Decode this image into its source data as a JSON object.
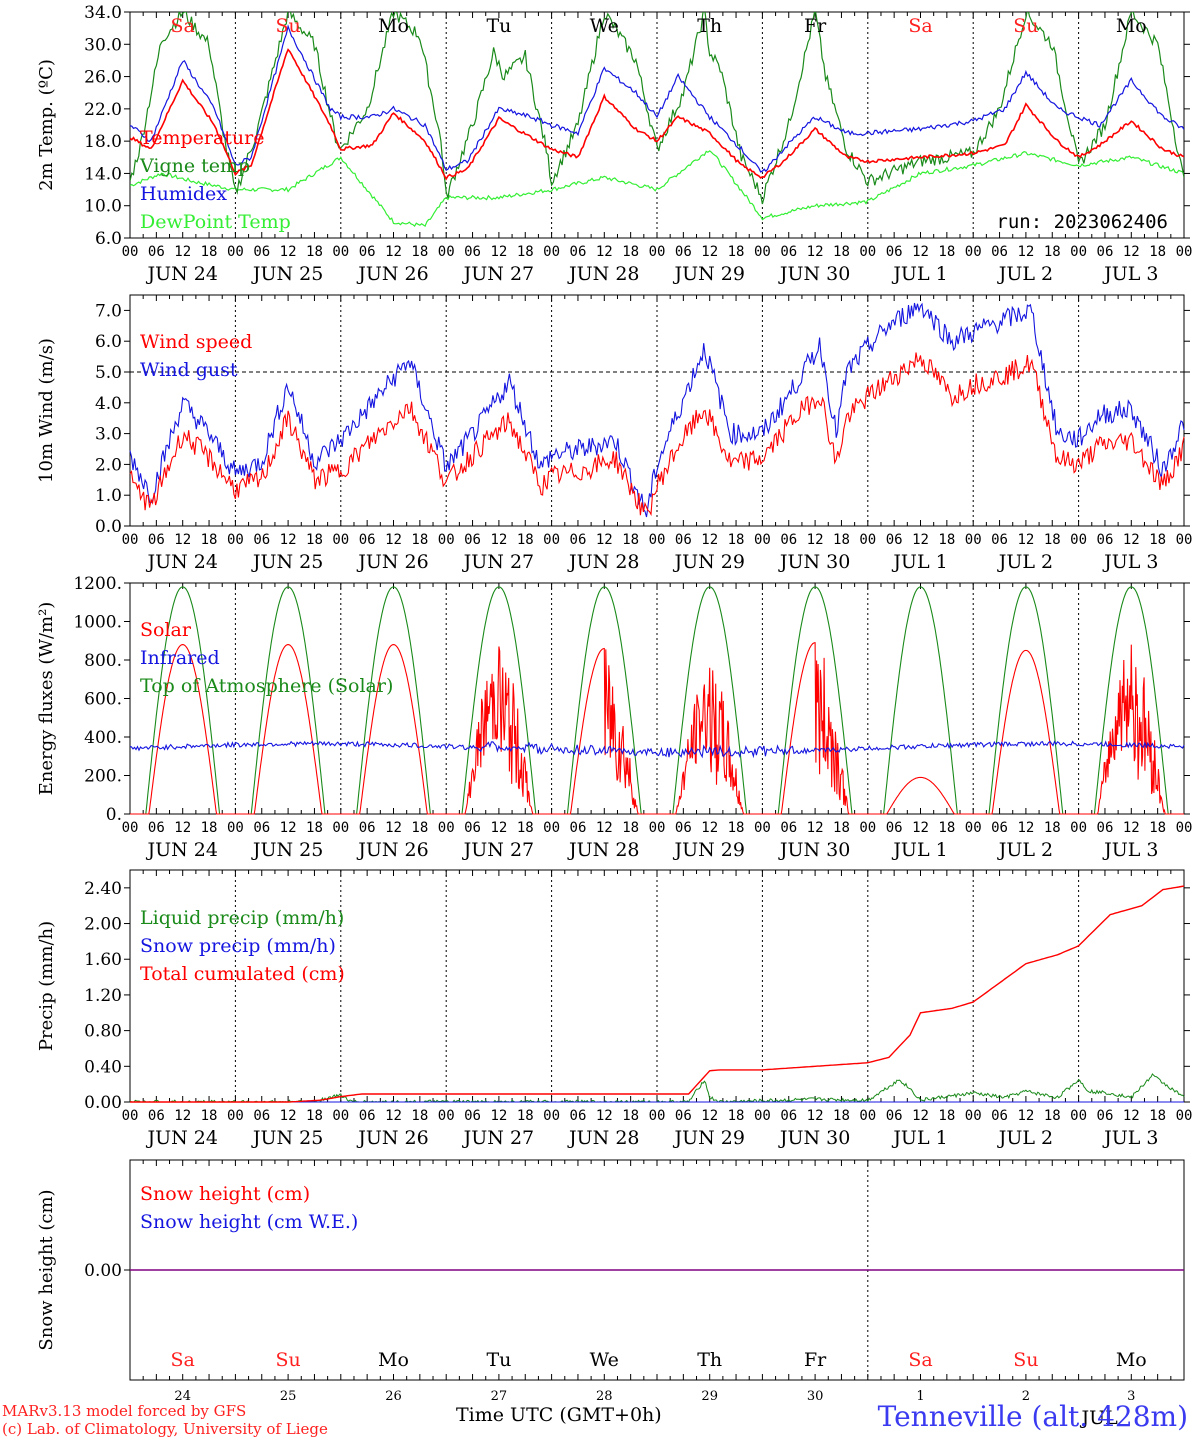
{
  "run_label": "run: 2023062406",
  "station_label": "Tenneville (alt. 428m)",
  "credits": [
    "MARv3.13 model forced by GFS",
    "(c) Lab. of Climatology, University of Liege"
  ],
  "x_axis_title": "Time UTC (GMT+0h)",
  "x_axis_bottom_extra": "JUL",
  "hour_ticks": [
    "00",
    "06",
    "12",
    "18"
  ],
  "date_labels": [
    "JUN 24",
    "JUN 25",
    "JUN 26",
    "JUN 27",
    "JUN 28",
    "JUN 29",
    "JUN 30",
    "JUL  1",
    "JUL  2",
    "JUL  3"
  ],
  "weekday_labels": [
    "Sa",
    "Su",
    "Mo",
    "Tu",
    "We",
    "Th",
    "Fr",
    "Sa",
    "Su",
    "Mo"
  ],
  "weekday_colors": [
    "#ff2020",
    "#ff2020",
    "#000000",
    "#000000",
    "#000000",
    "#000000",
    "#000000",
    "#ff2020",
    "#ff2020",
    "#000000"
  ],
  "day_numbers": [
    "24",
    "25",
    "26",
    "27",
    "28",
    "29",
    "30",
    "1",
    "2",
    "3"
  ],
  "colors": {
    "red": "#ff0000",
    "darkgreen": "#1a8a1a",
    "blue": "#1515e0",
    "lime": "#33ee33",
    "purple": "#800080"
  },
  "chart_data": [
    {
      "type": "line",
      "ylabel": "2m Temp. (ºC)",
      "ylim": [
        6.0,
        34.0
      ],
      "yticks": [
        "6.0",
        "10.0",
        "14.0",
        "18.0",
        "22.0",
        "26.0",
        "30.0",
        "34.0"
      ],
      "x_unit": "days since 2023-06-24 00 UTC",
      "grid": "vertical dotted at 00 UTC",
      "legend": "left",
      "series": [
        {
          "name": "Temperature",
          "color": "red",
          "x": [
            0,
            0.2,
            0.5,
            0.8,
            1.0,
            1.15,
            1.5,
            1.9,
            2.0,
            2.3,
            2.5,
            2.8,
            3.0,
            3.2,
            3.5,
            3.8,
            4.0,
            4.25,
            4.5,
            4.8,
            5.0,
            5.2,
            5.5,
            5.8,
            6.0,
            6.2,
            6.5,
            6.8,
            7.0,
            7.5,
            8.0,
            8.3,
            8.5,
            8.8,
            9.0,
            9.2,
            9.5,
            9.8,
            10.0
          ],
          "y": [
            18.5,
            17.0,
            25.5,
            20.0,
            14.0,
            15.0,
            29.5,
            20.0,
            17.0,
            17.5,
            21.5,
            18.0,
            13.5,
            14.5,
            20.8,
            18.5,
            17.0,
            16.0,
            23.5,
            19.5,
            18.0,
            21.0,
            19.0,
            15.0,
            13.5,
            15.5,
            19.5,
            16.0,
            15.5,
            16.0,
            16.5,
            17.5,
            22.5,
            18.0,
            16.0,
            17.5,
            20.5,
            17.0,
            16.0
          ]
        },
        {
          "name": "Vigne temp",
          "color": "darkgreen",
          "x": [
            0,
            0.1,
            0.3,
            0.5,
            0.75,
            0.9,
            1.0,
            1.2,
            1.5,
            1.75,
            1.95,
            2.0,
            2.25,
            2.5,
            2.75,
            2.95,
            3.0,
            3.25,
            3.45,
            3.55,
            3.75,
            3.95,
            4.0,
            4.25,
            4.5,
            4.8,
            5.0,
            5.25,
            5.45,
            5.5,
            5.6,
            5.8,
            6.0,
            6.25,
            6.5,
            6.6,
            6.8,
            7.0,
            7.5,
            8.0,
            8.25,
            8.5,
            8.75,
            9.0,
            9.25,
            9.5,
            9.75,
            10.0
          ],
          "y": [
            13.0,
            17.5,
            30.5,
            34.0,
            30.0,
            18.0,
            11.5,
            19.0,
            34.0,
            30.0,
            18.5,
            17.0,
            22.0,
            34.0,
            31.0,
            18.0,
            11.0,
            20.0,
            29.0,
            26.0,
            28.5,
            17.0,
            13.0,
            20.0,
            34.0,
            28.0,
            17.0,
            24.0,
            34.0,
            29.0,
            27.0,
            16.0,
            11.0,
            20.0,
            34.0,
            26.0,
            17.0,
            13.0,
            15.5,
            16.5,
            22.0,
            34.0,
            30.0,
            15.0,
            20.0,
            34.0,
            30.0,
            13.0
          ]
        },
        {
          "name": "Humidex",
          "color": "blue",
          "x": [
            0,
            0.2,
            0.5,
            0.8,
            1.0,
            1.15,
            1.5,
            1.9,
            2.0,
            2.3,
            2.5,
            2.8,
            3.0,
            3.2,
            3.5,
            3.8,
            4.0,
            4.25,
            4.5,
            4.8,
            5.0,
            5.2,
            5.5,
            5.8,
            6.0,
            6.2,
            6.5,
            6.8,
            7.0,
            7.5,
            8.0,
            8.3,
            8.5,
            8.8,
            9.0,
            9.2,
            9.5,
            9.8,
            10.0
          ],
          "y": [
            20.0,
            18.0,
            28.0,
            22.0,
            15.0,
            16.0,
            32.0,
            22.0,
            21.0,
            21.0,
            22.0,
            20.0,
            14.5,
            15.5,
            22.0,
            21.0,
            20.0,
            19.0,
            27.0,
            24.0,
            21.0,
            26.0,
            21.0,
            17.0,
            14.0,
            17.0,
            21.0,
            19.0,
            19.0,
            19.5,
            20.5,
            22.0,
            26.5,
            22.0,
            21.0,
            20.0,
            25.5,
            21.0,
            19.5
          ]
        },
        {
          "name": "DewPoint Temp",
          "color": "lime",
          "x": [
            0,
            0.3,
            0.6,
            1.0,
            1.5,
            2.0,
            2.5,
            2.8,
            3.0,
            3.5,
            4.0,
            4.5,
            5.0,
            5.5,
            6.0,
            6.5,
            7.0,
            7.5,
            8.0,
            8.5,
            9.0,
            9.5,
            10.0
          ],
          "y": [
            12.5,
            14.0,
            13.0,
            12.0,
            12.0,
            16.0,
            8.0,
            7.5,
            11.0,
            11.0,
            12.0,
            13.5,
            12.0,
            17.0,
            8.5,
            10.0,
            10.5,
            14.0,
            15.0,
            16.5,
            15.0,
            16.0,
            14.0
          ]
        }
      ]
    },
    {
      "type": "line",
      "ylabel": "10m Wind (m/s)",
      "ylim": [
        0.0,
        7.5
      ],
      "yticks": [
        "0.0",
        "1.0",
        "2.0",
        "3.0",
        "4.0",
        "5.0",
        "6.0",
        "7.0"
      ],
      "reference_line": 5.0,
      "legend": "left",
      "series": [
        {
          "name": "Wind speed",
          "color": "red",
          "x": [
            0,
            0.2,
            0.5,
            0.75,
            1.0,
            1.25,
            1.5,
            1.75,
            2.0,
            2.3,
            2.65,
            2.9,
            3.0,
            3.3,
            3.6,
            3.9,
            4.0,
            4.3,
            4.6,
            4.9,
            5.0,
            5.2,
            5.45,
            5.7,
            6.0,
            6.3,
            6.55,
            6.7,
            6.8,
            7.0,
            7.2,
            7.5,
            7.8,
            8.0,
            8.3,
            8.55,
            8.8,
            9.0,
            9.2,
            9.5,
            9.8,
            10.0
          ],
          "y": [
            1.5,
            0.6,
            3.0,
            2.2,
            1.2,
            1.5,
            3.5,
            1.5,
            1.8,
            2.8,
            3.9,
            2.2,
            1.4,
            2.5,
            3.4,
            1.3,
            1.6,
            1.8,
            2.2,
            0.3,
            1.3,
            2.6,
            3.8,
            2.0,
            2.2,
            3.5,
            4.3,
            2.0,
            3.5,
            4.2,
            4.7,
            5.5,
            4.2,
            4.6,
            4.9,
            5.3,
            2.2,
            2.0,
            2.6,
            2.8,
            1.3,
            2.6
          ]
        },
        {
          "name": "Wind gust",
          "color": "blue",
          "x": [
            0,
            0.2,
            0.5,
            0.75,
            1.0,
            1.25,
            1.5,
            1.75,
            2.0,
            2.3,
            2.65,
            2.9,
            3.0,
            3.3,
            3.6,
            3.9,
            4.0,
            4.3,
            4.6,
            4.9,
            5.0,
            5.2,
            5.45,
            5.7,
            6.0,
            6.3,
            6.55,
            6.7,
            6.8,
            7.0,
            7.2,
            7.5,
            7.8,
            8.0,
            8.3,
            8.55,
            8.8,
            9.0,
            9.2,
            9.5,
            9.8,
            10.0
          ],
          "y": [
            2.3,
            1.0,
            4.0,
            3.0,
            1.7,
            2.1,
            4.6,
            2.1,
            2.8,
            4.0,
            5.4,
            2.9,
            1.9,
            3.2,
            4.7,
            1.9,
            2.3,
            2.5,
            2.8,
            0.4,
            2.0,
            3.7,
            5.8,
            3.0,
            3.0,
            4.5,
            5.9,
            3.0,
            5.0,
            5.8,
            6.5,
            7.2,
            6.0,
            6.3,
            6.7,
            7.0,
            3.0,
            2.8,
            3.6,
            3.8,
            1.8,
            3.4
          ]
        }
      ]
    },
    {
      "type": "line",
      "ylabel": "Energy fluxes (W/m²)",
      "ylim": [
        0,
        1200
      ],
      "yticks": [
        "0.",
        "200.",
        "400.",
        "600.",
        "800.",
        "1000.",
        "1200."
      ],
      "legend": "left",
      "solar_day_peaks": [
        880,
        880,
        880,
        870,
        860,
        760,
        890,
        190,
        850,
        880
      ],
      "toa_peak": 1180,
      "infrared_range": [
        300,
        420
      ],
      "series_names": [
        "Solar",
        "Infrared",
        "Top of Atmosphere (Solar)"
      ],
      "series_colors": [
        "red",
        "blue",
        "darkgreen"
      ]
    },
    {
      "type": "line",
      "ylabel": "Precip (mm/h)",
      "ylim": [
        0.0,
        2.6
      ],
      "yticks": [
        "0.00",
        "0.40",
        "0.80",
        "1.20",
        "1.60",
        "2.00",
        "2.40"
      ],
      "legend": "left",
      "series": [
        {
          "name": "Liquid precip (mm/h)",
          "color": "darkgreen",
          "x": [
            0,
            1.7,
            1.9,
            2.0,
            2.1,
            5.3,
            5.45,
            5.5,
            5.6,
            6.5,
            7.0,
            7.3,
            7.4,
            7.5,
            8.0,
            8.3,
            8.5,
            8.8,
            9.0,
            9.1,
            9.3,
            9.5,
            9.7,
            10.0
          ],
          "y": [
            0,
            0,
            0.05,
            0.08,
            0,
            0,
            0.25,
            0.05,
            0,
            0.03,
            0.02,
            0.25,
            0.15,
            0.02,
            0.1,
            0.05,
            0.12,
            0.05,
            0.25,
            0.12,
            0.1,
            0.05,
            0.3,
            0.05
          ]
        },
        {
          "name": "Snow precip (mm/h)",
          "color": "blue",
          "x": [
            0,
            10
          ],
          "y": [
            0,
            0
          ]
        },
        {
          "name": "Total cumulated (cm)",
          "color": "red",
          "x": [
            0,
            1.5,
            1.8,
            2.0,
            2.2,
            5.3,
            5.5,
            5.6,
            6.0,
            6.5,
            7.0,
            7.2,
            7.4,
            7.5,
            7.8,
            8.0,
            8.5,
            8.8,
            9.0,
            9.3,
            9.6,
            9.8,
            10.0
          ],
          "y": [
            0,
            0,
            0.02,
            0.06,
            0.09,
            0.09,
            0.35,
            0.36,
            0.36,
            0.4,
            0.44,
            0.5,
            0.75,
            1.0,
            1.05,
            1.12,
            1.55,
            1.65,
            1.75,
            2.1,
            2.2,
            2.38,
            2.42
          ]
        }
      ]
    },
    {
      "type": "line",
      "ylabel": "Snow height (cm)",
      "ylim": [
        -1,
        1
      ],
      "yticks": [
        "0.00"
      ],
      "legend": "left",
      "series": [
        {
          "name": "Snow height (cm)",
          "color": "red",
          "x": [
            0,
            10
          ],
          "y": [
            0,
            0
          ]
        },
        {
          "name": "Snow height (cm W.E.)",
          "color": "blue",
          "x": [
            0,
            10
          ],
          "y": [
            0,
            0
          ]
        }
      ]
    }
  ]
}
